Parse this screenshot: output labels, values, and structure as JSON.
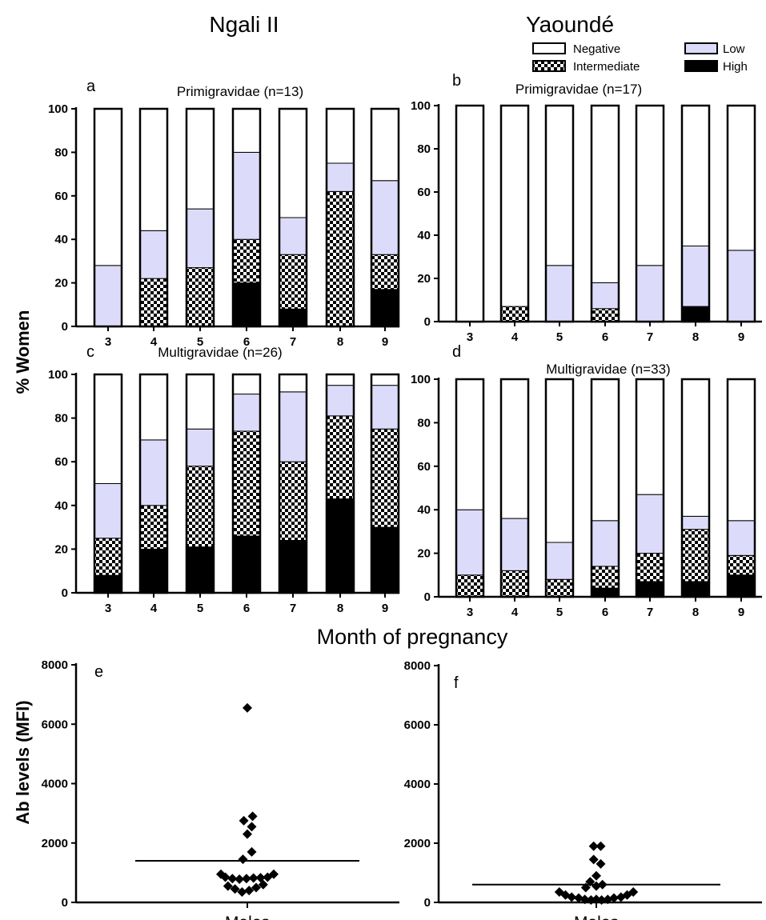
{
  "sites": [
    "Ngali II",
    "Yaoundé"
  ],
  "legend": [
    {
      "label": "Negative",
      "color": "#ffffff"
    },
    {
      "label": "Intermediate",
      "color": "checker"
    },
    {
      "label": "Low",
      "color": "#dcdcfa"
    },
    {
      "label": "High",
      "color": "#000000"
    }
  ],
  "ylabel_top": "% Women",
  "xlabel_top": "Month of pregnancy",
  "ylabel_bottom": "Ab levels (MFI)",
  "chart_data": [
    {
      "type": "bar",
      "stacked": true,
      "panel": "a",
      "title": "Primigravidae (n=13)",
      "categories": [
        "3",
        "4",
        "5",
        "6",
        "7",
        "8",
        "9"
      ],
      "ylim": [
        0,
        100
      ],
      "yticks": [
        "0",
        "20",
        "40",
        "60",
        "80",
        "100"
      ],
      "series": [
        {
          "name": "High",
          "values": [
            0,
            0,
            0,
            20,
            8,
            0,
            17
          ]
        },
        {
          "name": "Intermediate",
          "values": [
            0,
            22,
            27,
            20,
            25,
            62,
            16
          ]
        },
        {
          "name": "Low",
          "values": [
            28,
            22,
            27,
            40,
            17,
            13,
            34
          ]
        },
        {
          "name": "Negative",
          "values": [
            72,
            56,
            46,
            20,
            50,
            25,
            33
          ]
        }
      ]
    },
    {
      "type": "bar",
      "stacked": true,
      "panel": "b",
      "title": "Primigravidae (n=17)",
      "categories": [
        "3",
        "4",
        "5",
        "6",
        "7",
        "8",
        "9"
      ],
      "ylim": [
        0,
        100
      ],
      "yticks": [
        "0",
        "20",
        "40",
        "60",
        "80",
        "100"
      ],
      "series": [
        {
          "name": "High",
          "values": [
            0,
            0,
            0,
            0,
            0,
            7,
            0
          ]
        },
        {
          "name": "Intermediate",
          "values": [
            0,
            7,
            0,
            6,
            0,
            0,
            0
          ]
        },
        {
          "name": "Low",
          "values": [
            0,
            0,
            26,
            12,
            26,
            28,
            33
          ]
        },
        {
          "name": "Negative",
          "values": [
            100,
            93,
            74,
            82,
            74,
            65,
            67
          ]
        }
      ]
    },
    {
      "type": "bar",
      "stacked": true,
      "panel": "c",
      "title": "Multigravidae (n=26)",
      "categories": [
        "3",
        "4",
        "5",
        "6",
        "7",
        "8",
        "9"
      ],
      "ylim": [
        0,
        100
      ],
      "yticks": [
        "0",
        "20",
        "40",
        "60",
        "80",
        "100"
      ],
      "series": [
        {
          "name": "High",
          "values": [
            8,
            20,
            21,
            26,
            24,
            43,
            30
          ]
        },
        {
          "name": "Intermediate",
          "values": [
            17,
            20,
            37,
            48,
            36,
            38,
            45
          ]
        },
        {
          "name": "Low",
          "values": [
            25,
            30,
            17,
            17,
            32,
            14,
            20
          ]
        },
        {
          "name": "Negative",
          "values": [
            50,
            30,
            25,
            9,
            8,
            5,
            5
          ]
        }
      ]
    },
    {
      "type": "bar",
      "stacked": true,
      "panel": "d",
      "title": "Multigravidae (n=33)",
      "categories": [
        "3",
        "4",
        "5",
        "6",
        "7",
        "8",
        "9"
      ],
      "ylim": [
        0,
        100
      ],
      "yticks": [
        "0",
        "20",
        "40",
        "60",
        "80",
        "100"
      ],
      "series": [
        {
          "name": "High",
          "values": [
            0,
            0,
            0,
            4,
            7,
            7,
            10
          ]
        },
        {
          "name": "Intermediate",
          "values": [
            10,
            12,
            8,
            10,
            13,
            24,
            9
          ]
        },
        {
          "name": "Low",
          "values": [
            30,
            24,
            17,
            21,
            27,
            6,
            16
          ]
        },
        {
          "name": "Negative",
          "values": [
            60,
            64,
            75,
            65,
            53,
            63,
            65
          ]
        }
      ]
    },
    {
      "type": "scatter",
      "panel": "e",
      "category": "Males",
      "ylim": [
        0,
        8000
      ],
      "yticks": [
        "0",
        "2000",
        "4000",
        "6000",
        "8000"
      ],
      "mean_line": 1400,
      "points": [
        {
          "x": 0.0,
          "y": 6550
        },
        {
          "x": 0.06,
          "y": 2900
        },
        {
          "x": -0.04,
          "y": 2750
        },
        {
          "x": 0.05,
          "y": 2550
        },
        {
          "x": 0.0,
          "y": 2300
        },
        {
          "x": 0.05,
          "y": 1700
        },
        {
          "x": -0.05,
          "y": 1450
        },
        {
          "x": -0.3,
          "y": 950
        },
        {
          "x": -0.25,
          "y": 850
        },
        {
          "x": -0.17,
          "y": 800
        },
        {
          "x": -0.09,
          "y": 780
        },
        {
          "x": -0.01,
          "y": 800
        },
        {
          "x": 0.07,
          "y": 820
        },
        {
          "x": 0.15,
          "y": 830
        },
        {
          "x": 0.23,
          "y": 850
        },
        {
          "x": 0.3,
          "y": 950
        },
        {
          "x": -0.22,
          "y": 550
        },
        {
          "x": -0.14,
          "y": 450
        },
        {
          "x": -0.06,
          "y": 350
        },
        {
          "x": 0.02,
          "y": 400
        },
        {
          "x": 0.1,
          "y": 500
        },
        {
          "x": 0.18,
          "y": 600
        }
      ]
    },
    {
      "type": "scatter",
      "panel": "f",
      "category": "Males",
      "ylim": [
        0,
        8000
      ],
      "yticks": [
        "0",
        "2000",
        "4000",
        "6000",
        "8000"
      ],
      "mean_line": 600,
      "points": [
        {
          "x": -0.03,
          "y": 1900
        },
        {
          "x": 0.05,
          "y": 1900
        },
        {
          "x": -0.03,
          "y": 1450
        },
        {
          "x": 0.05,
          "y": 1300
        },
        {
          "x": 0.0,
          "y": 900
        },
        {
          "x": -0.07,
          "y": 700
        },
        {
          "x": 0.07,
          "y": 600
        },
        {
          "x": -0.12,
          "y": 500
        },
        {
          "x": 0.0,
          "y": 550
        },
        {
          "x": -0.42,
          "y": 350
        },
        {
          "x": 0.42,
          "y": 350
        },
        {
          "x": -0.35,
          "y": 250
        },
        {
          "x": 0.35,
          "y": 250
        },
        {
          "x": -0.28,
          "y": 180
        },
        {
          "x": 0.28,
          "y": 180
        },
        {
          "x": -0.2,
          "y": 150
        },
        {
          "x": 0.2,
          "y": 150
        },
        {
          "x": -0.13,
          "y": 100
        },
        {
          "x": 0.13,
          "y": 100
        },
        {
          "x": -0.06,
          "y": 80
        },
        {
          "x": 0.06,
          "y": 80
        },
        {
          "x": 0.0,
          "y": 100
        }
      ]
    }
  ]
}
